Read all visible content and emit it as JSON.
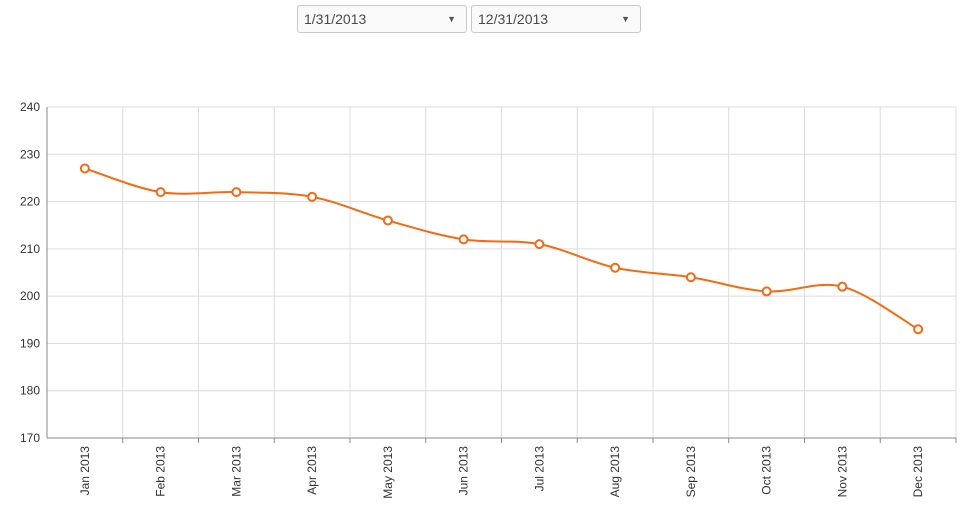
{
  "controls": {
    "start_date": "1/31/2013",
    "end_date": "12/31/2013"
  },
  "chart_data": {
    "type": "line",
    "title": "",
    "xlabel": "",
    "ylabel": "",
    "categories": [
      "Jan 2013",
      "Feb 2013",
      "Mar 2013",
      "Apr 2013",
      "May 2013",
      "Jun 2013",
      "Jul 2013",
      "Aug 2013",
      "Sep 2013",
      "Oct 2013",
      "Nov 2013",
      "Dec 2013"
    ],
    "series": [
      {
        "values": [
          227,
          222,
          222,
          221,
          216,
          212,
          211,
          206,
          204,
          201,
          202,
          193
        ]
      }
    ],
    "ylim": [
      170,
      240
    ],
    "yticks": [
      170,
      180,
      190,
      200,
      210,
      220,
      230,
      240
    ],
    "grid": true,
    "legend": "none",
    "color": "#f26b12"
  }
}
